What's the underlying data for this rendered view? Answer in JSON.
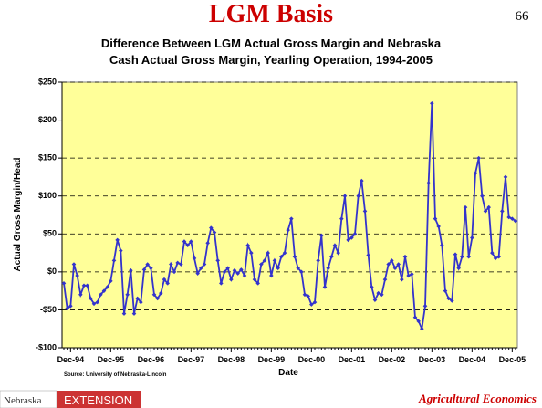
{
  "slide": {
    "title": "LGM Basis",
    "page_number": "66"
  },
  "footer": {
    "source": "Source:  University of Nebraska-Lincoln",
    "logo_left": "Nebraska",
    "logo_right": "EXTENSION",
    "right_text": "Agricultural Economics"
  },
  "chart_data": {
    "type": "line",
    "title": [
      "Difference Between LGM Actual Gross Margin and Nebraska",
      "Cash Actual Gross Margin, Yearling Operation, 1994-2005"
    ],
    "x_label": "Date",
    "y_label": "Actual Gross Margin/Head",
    "categories": [
      null,
      null,
      "Dec-94",
      null,
      null,
      null,
      null,
      null,
      null,
      null,
      null,
      null,
      null,
      null,
      "Dec-95",
      null,
      null,
      null,
      null,
      null,
      null,
      null,
      null,
      null,
      null,
      null,
      "Dec-96",
      null,
      null,
      null,
      null,
      null,
      null,
      null,
      null,
      null,
      null,
      null,
      "Dec-97",
      null,
      null,
      null,
      null,
      null,
      null,
      null,
      null,
      null,
      null,
      null,
      "Dec-98",
      null,
      null,
      null,
      null,
      null,
      null,
      null,
      null,
      null,
      null,
      null,
      "Dec-99",
      null,
      null,
      null,
      null,
      null,
      null,
      null,
      null,
      null,
      null,
      null,
      "Dec-00",
      null,
      null,
      null,
      null,
      null,
      null,
      null,
      null,
      null,
      null,
      null,
      "Dec-01",
      null,
      null,
      null,
      null,
      null,
      null,
      null,
      null,
      null,
      null,
      null,
      "Dec-02",
      null,
      null,
      null,
      null,
      null,
      null,
      null,
      null,
      null,
      null,
      null,
      "Dec-03",
      null,
      null,
      null,
      null,
      null,
      null,
      null,
      null,
      null,
      null,
      null,
      "Dec-04",
      null,
      null,
      null,
      null,
      null,
      null,
      null,
      null,
      null,
      null,
      null,
      "Dec-05",
      null
    ],
    "series": [
      {
        "name": "LGM Basis",
        "color": "#3333cc",
        "values": [
          -15,
          -48,
          -45,
          10,
          -5,
          -30,
          -18,
          -18,
          -35,
          -42,
          -40,
          -30,
          -25,
          -20,
          -12,
          15,
          42,
          28,
          -55,
          -30,
          2,
          -55,
          -35,
          -40,
          3,
          10,
          5,
          -30,
          -35,
          -28,
          -10,
          -15,
          10,
          0,
          12,
          10,
          40,
          35,
          40,
          18,
          -2,
          5,
          10,
          38,
          58,
          52,
          15,
          -15,
          0,
          5,
          -10,
          2,
          -2,
          3,
          -5,
          35,
          25,
          -10,
          -15,
          10,
          15,
          25,
          -5,
          15,
          5,
          20,
          25,
          55,
          70,
          20,
          5,
          0,
          -30,
          -32,
          -43,
          -40,
          15,
          48,
          -20,
          5,
          20,
          35,
          25,
          70,
          100,
          42,
          45,
          50,
          100,
          120,
          80,
          22,
          -20,
          -37,
          -28,
          -30,
          -10,
          10,
          15,
          5,
          10,
          -10,
          20,
          -5,
          -3,
          -60,
          -65,
          -75,
          -45,
          117,
          222,
          70,
          60,
          35,
          -25,
          -35,
          -38,
          23,
          5,
          20,
          85,
          20,
          45,
          130,
          150,
          100,
          80,
          85,
          25,
          18,
          20,
          80,
          125,
          72,
          70,
          67
        ]
      }
    ],
    "ylim": [
      -100,
      250
    ],
    "yticks": [
      {
        "value": -100,
        "label": "-$100"
      },
      {
        "value": -50,
        "label": "-$50"
      },
      {
        "value": 0,
        "label": "$0"
      },
      {
        "value": 50,
        "label": "$50"
      },
      {
        "value": 100,
        "label": "$100"
      },
      {
        "value": 150,
        "label": "$150"
      },
      {
        "value": 200,
        "label": "$200"
      },
      {
        "value": 250,
        "label": "$250"
      }
    ],
    "grid": true,
    "plot_background": "#ffff99"
  }
}
